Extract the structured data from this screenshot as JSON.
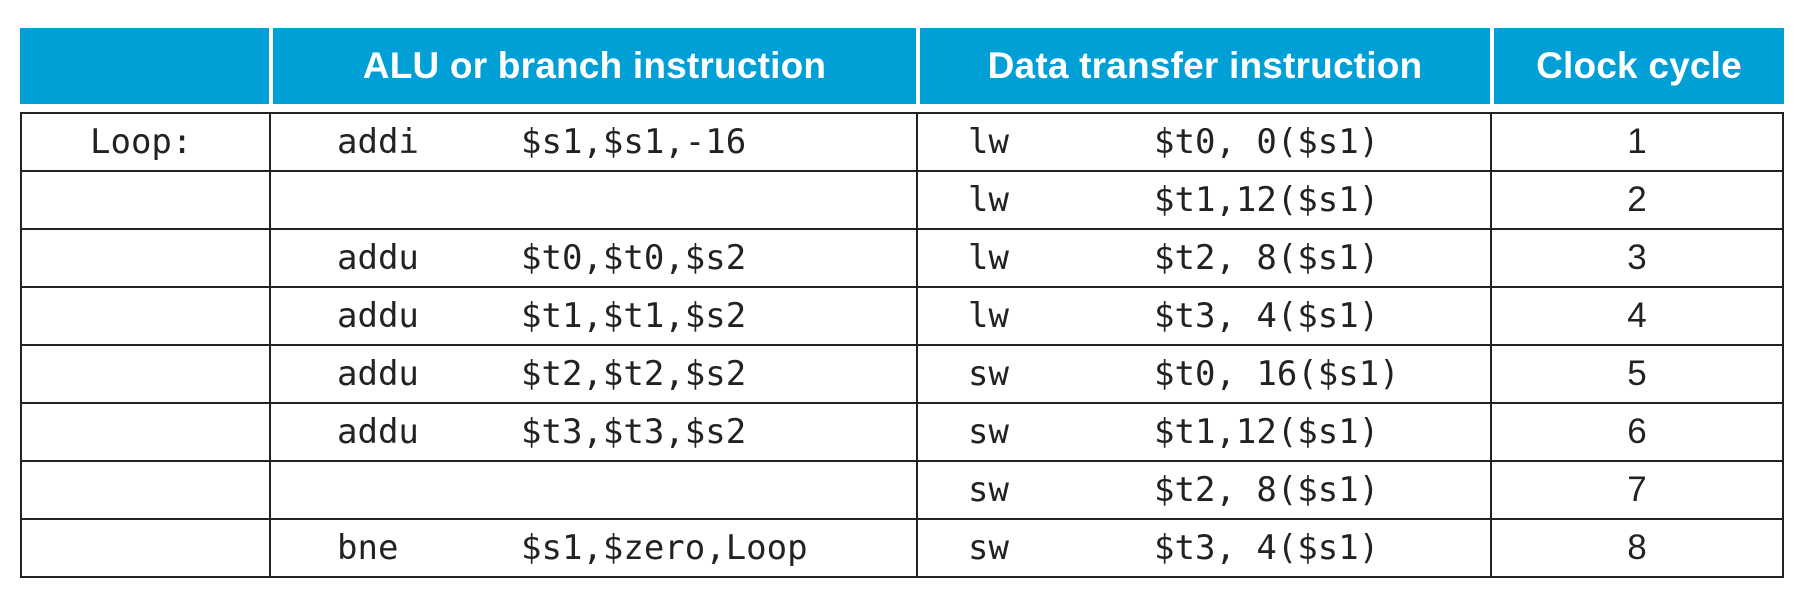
{
  "headers": {
    "col1": "",
    "col2": "ALU or branch instruction",
    "col3": "Data transfer instruction",
    "col4": "Clock cycle"
  },
  "rows": [
    {
      "label": "Loop:",
      "alu_op": "addi",
      "alu_args": "$s1,$s1,-16",
      "dt_op": "lw",
      "dt_args": "$t0, 0($s1)",
      "cycle": "1"
    },
    {
      "label": "",
      "alu_op": "",
      "alu_args": "",
      "dt_op": "lw",
      "dt_args": "$t1,12($s1)",
      "cycle": "2"
    },
    {
      "label": "",
      "alu_op": "addu",
      "alu_args": "$t0,$t0,$s2",
      "dt_op": "lw",
      "dt_args": "$t2, 8($s1)",
      "cycle": "3"
    },
    {
      "label": "",
      "alu_op": "addu",
      "alu_args": "$t1,$t1,$s2",
      "dt_op": "lw",
      "dt_args": "$t3, 4($s1)",
      "cycle": "4"
    },
    {
      "label": "",
      "alu_op": "addu",
      "alu_args": "$t2,$t2,$s2",
      "dt_op": "sw",
      "dt_args": "$t0, 16($s1)",
      "cycle": "5"
    },
    {
      "label": "",
      "alu_op": "addu",
      "alu_args": "$t3,$t3,$s2",
      "dt_op": "sw",
      "dt_args": "$t1,12($s1)",
      "cycle": "6"
    },
    {
      "label": "",
      "alu_op": "",
      "alu_args": "",
      "dt_op": "sw",
      "dt_args": "$t2, 8($s1)",
      "cycle": "7"
    },
    {
      "label": "",
      "alu_op": "bne",
      "alu_args": "$s1,$zero,Loop",
      "dt_op": "sw",
      "dt_args": "$t3, 4($s1)",
      "cycle": "8"
    }
  ],
  "colors": {
    "header_bg": "#00a0d6",
    "header_text": "#ffffff",
    "grid": "#222222"
  }
}
